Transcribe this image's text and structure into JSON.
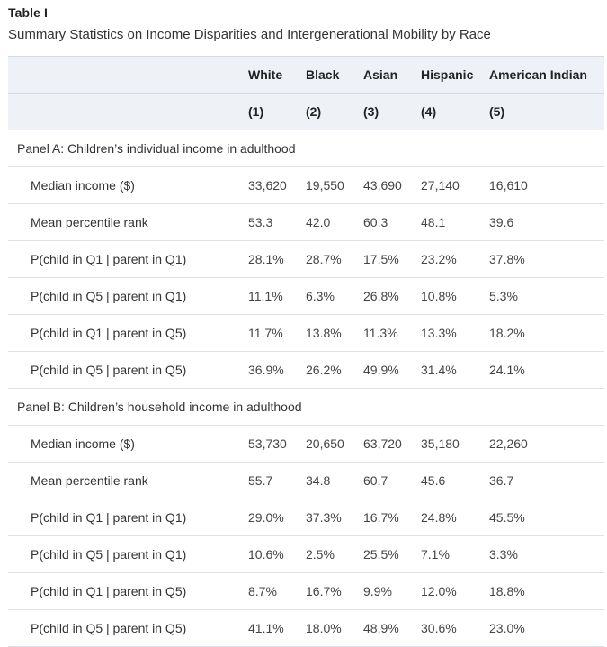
{
  "title": "Table I",
  "subtitle": "Summary Statistics on Income Disparities and Intergenerational Mobility by Race",
  "columns": {
    "names": [
      "White",
      "Black",
      "Asian",
      "Hispanic",
      "American Indian"
    ],
    "numbers": [
      "(1)",
      "(2)",
      "(3)",
      "(4)",
      "(5)"
    ]
  },
  "panels": [
    {
      "label": "Panel A: Children’s individual income in adulthood",
      "rows": [
        {
          "label": "Median income ($)",
          "values": [
            "33,620",
            "19,550",
            "43,690",
            "27,140",
            "16,610"
          ]
        },
        {
          "label": "Mean percentile rank",
          "values": [
            "53.3",
            "42.0",
            "60.3",
            "48.1",
            "39.6"
          ]
        },
        {
          "label": "P(child in Q1 | parent in Q1)",
          "values": [
            "28.1%",
            "28.7%",
            "17.5%",
            "23.2%",
            "37.8%"
          ]
        },
        {
          "label": "P(child in Q5 | parent in Q1)",
          "values": [
            "11.1%",
            "6.3%",
            "26.8%",
            "10.8%",
            "5.3%"
          ]
        },
        {
          "label": "P(child in Q1 | parent in Q5)",
          "values": [
            "11.7%",
            "13.8%",
            "11.3%",
            "13.3%",
            "18.2%"
          ]
        },
        {
          "label": "P(child in Q5 | parent in Q5)",
          "values": [
            "36.9%",
            "26.2%",
            "49.9%",
            "31.4%",
            "24.1%"
          ]
        }
      ]
    },
    {
      "label": "Panel B: Children’s household income in adulthood",
      "rows": [
        {
          "label": "Median income ($)",
          "values": [
            "53,730",
            "20,650",
            "63,720",
            "35,180",
            "22,260"
          ]
        },
        {
          "label": "Mean percentile rank",
          "values": [
            "55.7",
            "34.8",
            "60.7",
            "45.6",
            "36.7"
          ]
        },
        {
          "label": "P(child in Q1 | parent in Q1)",
          "values": [
            "29.0%",
            "37.3%",
            "16.7%",
            "24.8%",
            "45.5%"
          ]
        },
        {
          "label": "P(child in Q5 | parent in Q1)",
          "values": [
            "10.6%",
            "2.5%",
            "25.5%",
            "7.1%",
            "3.3%"
          ]
        },
        {
          "label": "P(child in Q1 | parent in Q5)",
          "values": [
            "8.7%",
            "16.7%",
            "9.9%",
            "12.0%",
            "18.8%"
          ]
        },
        {
          "label": "P(child in Q5 | parent in Q5)",
          "values": [
            "41.1%",
            "18.0%",
            "48.9%",
            "30.6%",
            "23.0%"
          ]
        }
      ]
    }
  ]
}
